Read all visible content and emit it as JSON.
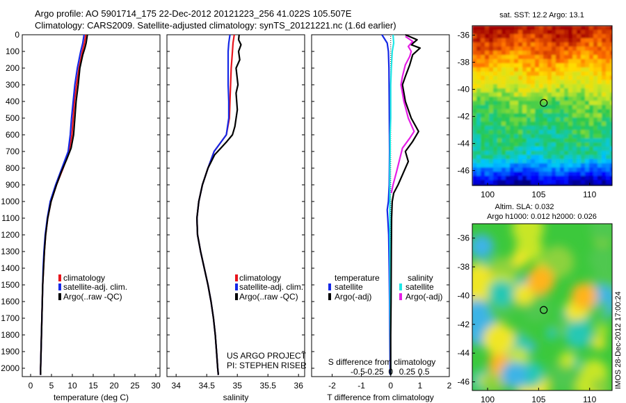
{
  "header": {
    "line1": "Argo profile: AO 5901714_175 22-Dec-2012 20121223_256 41.022S 105.507E",
    "line2": "Climatology: CARS2009. Satellite-adjusted climatology: synTS_20121221.nc (1.6d earlier)"
  },
  "colors": {
    "climatology": "#e8141c",
    "satellite": "#1428e6",
    "argo": "#000000",
    "sal_satellite": "#1ee6e6",
    "sal_argo": "#e61ee6"
  },
  "chart_data": [
    {
      "type": "line",
      "panel": "temperature",
      "xlabel": "temperature (deg C)",
      "xlim": [
        -2,
        31
      ],
      "xticks": [
        "0",
        "5",
        "10",
        "15",
        "20",
        "25",
        "30"
      ],
      "ylim": [
        2050,
        0
      ],
      "yticks": [
        "0",
        "100",
        "200",
        "300",
        "400",
        "500",
        "600",
        "700",
        "800",
        "900",
        "1000",
        "1100",
        "1200",
        "1300",
        "1400",
        "1500",
        "1600",
        "1700",
        "1800",
        "1900",
        "2000"
      ],
      "legend": [
        "climatology",
        "satellite-adj. clim.",
        "Argo(..raw -QC)"
      ],
      "series": [
        {
          "name": "climatology",
          "color": "#e8141c",
          "points": [
            [
              13.2,
              0
            ],
            [
              12.9,
              50
            ],
            [
              12.4,
              100
            ],
            [
              11.6,
              200
            ],
            [
              11.0,
              300
            ],
            [
              10.5,
              400
            ],
            [
              10.2,
              500
            ],
            [
              9.9,
              600
            ],
            [
              9.2,
              700
            ],
            [
              7.8,
              800
            ],
            [
              6.2,
              900
            ],
            [
              4.9,
              1000
            ],
            [
              4.1,
              1100
            ],
            [
              3.6,
              1200
            ],
            [
              3.3,
              1300
            ],
            [
              3.1,
              1400
            ],
            [
              2.9,
              1500
            ],
            [
              2.8,
              1600
            ],
            [
              2.7,
              1700
            ],
            [
              2.6,
              1800
            ],
            [
              2.5,
              1900
            ],
            [
              2.4,
              2000
            ],
            [
              2.4,
              2040
            ]
          ]
        },
        {
          "name": "satellite-adj. clim.",
          "color": "#1428e6",
          "points": [
            [
              12.8,
              0
            ],
            [
              12.5,
              50
            ],
            [
              12.0,
              100
            ],
            [
              11.2,
              200
            ],
            [
              10.6,
              300
            ],
            [
              10.2,
              400
            ],
            [
              9.8,
              500
            ],
            [
              9.5,
              600
            ],
            [
              9.0,
              700
            ],
            [
              7.5,
              800
            ],
            [
              6.0,
              900
            ],
            [
              4.7,
              1000
            ],
            [
              4.0,
              1100
            ],
            [
              3.5,
              1200
            ],
            [
              3.2,
              1300
            ],
            [
              3.0,
              1400
            ],
            [
              2.9,
              1500
            ],
            [
              2.8,
              1600
            ],
            [
              2.7,
              1700
            ],
            [
              2.6,
              1800
            ],
            [
              2.5,
              1900
            ],
            [
              2.4,
              2000
            ],
            [
              2.4,
              2040
            ]
          ]
        },
        {
          "name": "Argo(..raw -QC)",
          "color": "#000000",
          "points": [
            [
              13.6,
              0
            ],
            [
              13.3,
              50
            ],
            [
              13.0,
              80
            ],
            [
              12.5,
              120
            ],
            [
              11.8,
              200
            ],
            [
              11.4,
              300
            ],
            [
              10.9,
              400
            ],
            [
              10.6,
              500
            ],
            [
              10.3,
              600
            ],
            [
              9.7,
              680
            ],
            [
              8.6,
              750
            ],
            [
              7.4,
              820
            ],
            [
              6.2,
              900
            ],
            [
              4.9,
              1000
            ],
            [
              4.1,
              1100
            ],
            [
              3.6,
              1200
            ],
            [
              3.3,
              1300
            ],
            [
              3.1,
              1400
            ],
            [
              2.9,
              1500
            ],
            [
              2.8,
              1600
            ],
            [
              2.7,
              1700
            ],
            [
              2.6,
              1800
            ],
            [
              2.5,
              1900
            ],
            [
              2.4,
              2000
            ],
            [
              2.4,
              2040
            ]
          ]
        }
      ]
    },
    {
      "type": "line",
      "panel": "salinity",
      "xlabel": "salinity",
      "xlim": [
        33.85,
        36.1
      ],
      "xticks": [
        "34",
        "34.5",
        "35",
        "35.5",
        "36"
      ],
      "ylim": [
        2050,
        0
      ],
      "legend": [
        "climatology",
        "satellite-adj. clim.",
        "Argo(..raw -QC)"
      ],
      "annotation": [
        "US ARGO PROJECT",
        "PI: STEPHEN RISER"
      ],
      "series": [
        {
          "name": "climatology",
          "color": "#e8141c",
          "points": [
            [
              34.95,
              0
            ],
            [
              34.93,
              50
            ],
            [
              34.92,
              100
            ],
            [
              34.9,
              200
            ],
            [
              34.89,
              300
            ],
            [
              34.88,
              400
            ],
            [
              34.87,
              500
            ],
            [
              34.82,
              600
            ],
            [
              34.72,
              650
            ],
            [
              34.62,
              700
            ],
            [
              34.52,
              800
            ],
            [
              34.43,
              900
            ],
            [
              34.37,
              1000
            ],
            [
              34.34,
              1100
            ],
            [
              34.35,
              1200
            ],
            [
              34.4,
              1300
            ],
            [
              34.46,
              1400
            ],
            [
              34.52,
              1500
            ],
            [
              34.57,
              1600
            ],
            [
              34.61,
              1700
            ],
            [
              34.64,
              1800
            ],
            [
              34.66,
              1900
            ],
            [
              34.68,
              2000
            ],
            [
              34.69,
              2040
            ]
          ]
        },
        {
          "name": "satellite-adj. clim.",
          "color": "#1428e6",
          "points": [
            [
              34.88,
              0
            ],
            [
              34.86,
              50
            ],
            [
              34.85,
              100
            ],
            [
              34.85,
              200
            ],
            [
              34.85,
              300
            ],
            [
              34.86,
              400
            ],
            [
              34.86,
              500
            ],
            [
              34.82,
              600
            ],
            [
              34.72,
              650
            ],
            [
              34.62,
              700
            ],
            [
              34.52,
              800
            ],
            [
              34.43,
              900
            ],
            [
              34.37,
              1000
            ],
            [
              34.34,
              1100
            ],
            [
              34.35,
              1200
            ],
            [
              34.4,
              1300
            ],
            [
              34.46,
              1400
            ],
            [
              34.52,
              1500
            ],
            [
              34.57,
              1600
            ],
            [
              34.61,
              1700
            ],
            [
              34.64,
              1800
            ],
            [
              34.66,
              1900
            ],
            [
              34.68,
              2000
            ],
            [
              34.69,
              2040
            ]
          ]
        },
        {
          "name": "Argo(..raw -QC)",
          "color": "#000000",
          "points": [
            [
              35.03,
              0
            ],
            [
              35.02,
              30
            ],
            [
              35.06,
              60
            ],
            [
              35.02,
              100
            ],
            [
              35.04,
              150
            ],
            [
              34.98,
              200
            ],
            [
              35.01,
              300
            ],
            [
              34.98,
              350
            ],
            [
              35.0,
              450
            ],
            [
              34.96,
              550
            ],
            [
              34.92,
              600
            ],
            [
              34.83,
              640
            ],
            [
              34.73,
              680
            ],
            [
              34.63,
              720
            ],
            [
              34.52,
              800
            ],
            [
              34.43,
              900
            ],
            [
              34.37,
              1000
            ],
            [
              34.34,
              1100
            ],
            [
              34.35,
              1200
            ],
            [
              34.4,
              1300
            ],
            [
              34.46,
              1400
            ],
            [
              34.52,
              1500
            ],
            [
              34.57,
              1600
            ],
            [
              34.61,
              1700
            ],
            [
              34.64,
              1800
            ],
            [
              34.66,
              1900
            ],
            [
              34.68,
              2000
            ],
            [
              34.69,
              2040
            ]
          ]
        }
      ]
    },
    {
      "type": "line",
      "panel": "difference",
      "xlabel": "T difference from climatology",
      "xlabel_top": "S difference from climatology",
      "xlim_T": [
        -2.7,
        2.0
      ],
      "xticks_T": [
        "-2",
        "-1",
        "0",
        "1",
        "2"
      ],
      "xticks_S": [
        "-0.5",
        "-0.25",
        "0",
        "0.25",
        "0.5"
      ],
      "ylim": [
        2050,
        0
      ],
      "legend_left_title": "temperature",
      "legend_right_title": "salinity",
      "legend_left": [
        "satellite",
        "Argo(-adj)"
      ],
      "legend_right": [
        "satellite",
        "Argo(-adj)"
      ],
      "series": [
        {
          "name": "satellite",
          "color": "#1428e6",
          "points": [
            [
              -0.3,
              0
            ],
            [
              -0.12,
              50
            ],
            [
              -0.08,
              100
            ],
            [
              -0.06,
              200
            ],
            [
              -0.05,
              400
            ],
            [
              -0.04,
              700
            ],
            [
              -0.05,
              900
            ],
            [
              -0.08,
              1000
            ],
            [
              -0.12,
              1050
            ],
            [
              -0.1,
              1100
            ],
            [
              -0.07,
              1200
            ],
            [
              -0.05,
              1400
            ],
            [
              -0.04,
              1600
            ],
            [
              -0.03,
              1800
            ],
            [
              -0.02,
              2000
            ],
            [
              -0.02,
              2040
            ]
          ]
        },
        {
          "name": "satellite",
          "color": "#1ee6e6",
          "points": [
            [
              0.08,
              0
            ],
            [
              0.1,
              50
            ],
            [
              0.05,
              100
            ],
            [
              0.02,
              200
            ],
            [
              0.0,
              300
            ],
            [
              0.0,
              400
            ],
            [
              0.0,
              500
            ],
            [
              -0.02,
              600
            ],
            [
              -0.02,
              700
            ],
            [
              -0.03,
              800
            ],
            [
              -0.03,
              900
            ],
            [
              -0.03,
              1000
            ],
            [
              -0.03,
              1200
            ],
            [
              -0.02,
              1400
            ],
            [
              -0.02,
              1600
            ],
            [
              -0.01,
              1800
            ],
            [
              0.0,
              2000
            ],
            [
              0.0,
              2040
            ]
          ]
        },
        {
          "name": "Argo(-adj)",
          "color": "#000000",
          "points": [
            [
              0.5,
              0
            ],
            [
              0.9,
              30
            ],
            [
              0.7,
              60
            ],
            [
              1.0,
              80
            ],
            [
              0.75,
              120
            ],
            [
              0.65,
              180
            ],
            [
              0.5,
              250
            ],
            [
              0.4,
              300
            ],
            [
              0.5,
              400
            ],
            [
              0.7,
              500
            ],
            [
              0.95,
              580
            ],
            [
              0.75,
              640
            ],
            [
              0.5,
              700
            ],
            [
              0.6,
              760
            ],
            [
              0.45,
              820
            ],
            [
              0.25,
              900
            ],
            [
              0.1,
              950
            ],
            [
              0.05,
              1000
            ],
            [
              0.03,
              1100
            ],
            [
              0.02,
              1300
            ],
            [
              0.01,
              1600
            ],
            [
              0.0,
              1800
            ],
            [
              0.0,
              2040
            ]
          ]
        },
        {
          "name": "Argo(-adj)",
          "color": "#e61ee6",
          "points": [
            [
              0.5,
              10
            ],
            [
              0.75,
              40
            ],
            [
              0.6,
              70
            ],
            [
              0.7,
              100
            ],
            [
              0.65,
              130
            ],
            [
              0.5,
              180
            ],
            [
              0.4,
              250
            ],
            [
              0.35,
              300
            ],
            [
              0.45,
              400
            ],
            [
              0.6,
              500
            ],
            [
              0.8,
              580
            ],
            [
              0.65,
              620
            ],
            [
              0.4,
              680
            ],
            [
              0.3,
              750
            ],
            [
              0.2,
              820
            ],
            [
              0.08,
              900
            ],
            [
              0.02,
              950
            ]
          ]
        }
      ]
    },
    {
      "type": "heatmap",
      "panel": "sst_map",
      "title": "sat. SST: 12.2 Argo: 13.1",
      "xticks": [
        "100",
        "105",
        "110"
      ],
      "yticks": [
        "-36",
        "-38",
        "-40",
        "-42",
        "-44",
        "-46"
      ],
      "xlim": [
        98.5,
        112.2
      ],
      "ylim": [
        -47.1,
        -35.3
      ],
      "marker": [
        105.5,
        -41.0
      ]
    },
    {
      "type": "heatmap",
      "panel": "sla_map",
      "title": "Altim. SLA: 0.032",
      "subtitle": "Argo h1000: 0.012 h2000: 0.026",
      "xticks": [
        "100",
        "105",
        "110"
      ],
      "yticks": [
        "-36",
        "-38",
        "-40",
        "-42",
        "-44",
        "-46"
      ],
      "xlim": [
        98.5,
        112.2
      ],
      "ylim": [
        -46.6,
        -35.0
      ],
      "marker": [
        105.5,
        -41.0
      ]
    }
  ],
  "footer": {
    "watermark": "IMOS 28-Dec-2012 17:00:24"
  }
}
